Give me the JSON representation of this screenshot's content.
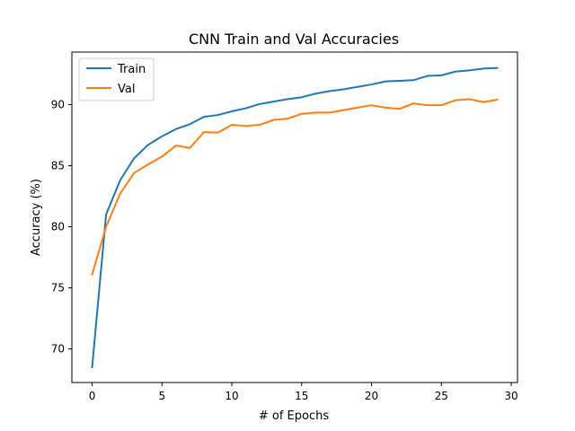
{
  "chart_data": {
    "type": "line",
    "title": "CNN Train and Val Accuracies",
    "xlabel": "# of Epochs",
    "ylabel": "Accuracy (%)",
    "xlim": [
      -1.45,
      30.45
    ],
    "ylim": [
      67.25,
      94.3
    ],
    "x_ticks": [
      0,
      5,
      10,
      15,
      20,
      25,
      30
    ],
    "y_ticks": [
      70,
      75,
      80,
      85,
      90
    ],
    "grid": false,
    "legend_position": "top-left",
    "x": [
      0,
      1,
      2,
      3,
      4,
      5,
      6,
      7,
      8,
      9,
      10,
      11,
      12,
      13,
      14,
      15,
      16,
      17,
      18,
      19,
      20,
      21,
      22,
      23,
      24,
      25,
      26,
      27,
      28,
      29
    ],
    "series": [
      {
        "name": "Train",
        "color": "#1f77b4",
        "values": [
          68.5,
          81.0,
          83.8,
          85.6,
          86.7,
          87.4,
          88.0,
          88.4,
          89.0,
          89.15,
          89.45,
          89.7,
          90.05,
          90.25,
          90.45,
          90.6,
          90.9,
          91.1,
          91.25,
          91.45,
          91.65,
          91.9,
          91.95,
          92.0,
          92.35,
          92.4,
          92.7,
          92.8,
          92.95,
          93.0
        ]
      },
      {
        "name": "Val",
        "color": "#ff7f0e",
        "values": [
          76.1,
          80.0,
          82.7,
          84.4,
          85.1,
          85.75,
          86.65,
          86.45,
          87.75,
          87.7,
          88.35,
          88.25,
          88.35,
          88.75,
          88.85,
          89.25,
          89.35,
          89.35,
          89.55,
          89.75,
          89.95,
          89.75,
          89.65,
          90.1,
          89.95,
          89.95,
          90.35,
          90.45,
          90.2,
          90.4
        ]
      }
    ]
  }
}
